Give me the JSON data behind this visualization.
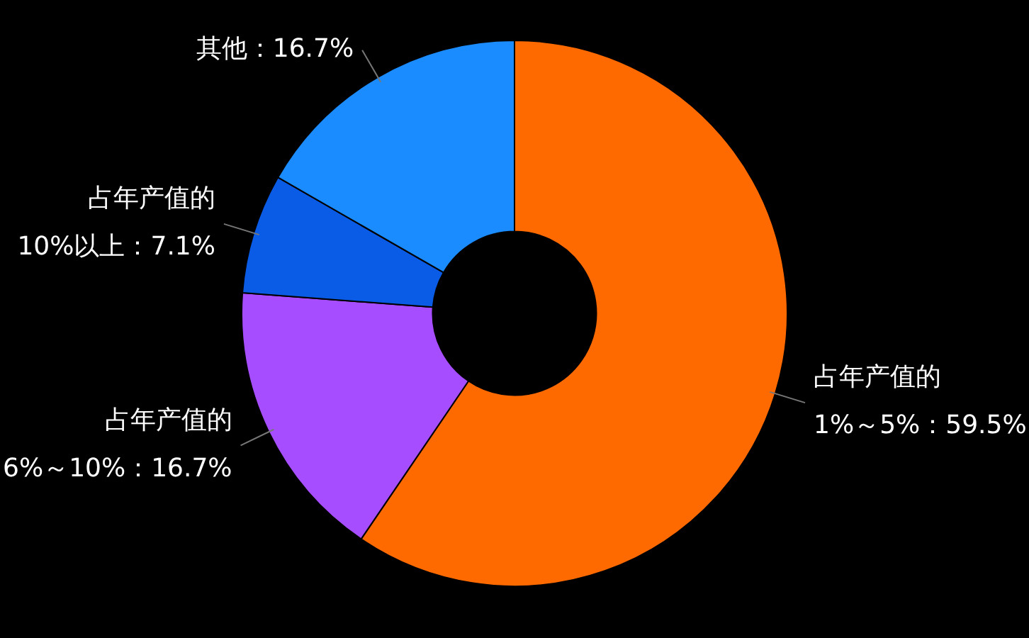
{
  "chart_data": {
    "type": "donut",
    "categories": [
      "占年产值的1%～5%",
      "占年产值的6%～10%",
      "占年产值的10%以上",
      "其他"
    ],
    "values": [
      59.5,
      16.7,
      7.1,
      16.7
    ],
    "colors": [
      "#ff6a00",
      "#a64dff",
      "#0a5ce6",
      "#1a8cff"
    ],
    "value_labels": [
      "59.5%",
      "16.7%",
      "7.1%",
      "16.7%"
    ],
    "legend": false
  }
}
